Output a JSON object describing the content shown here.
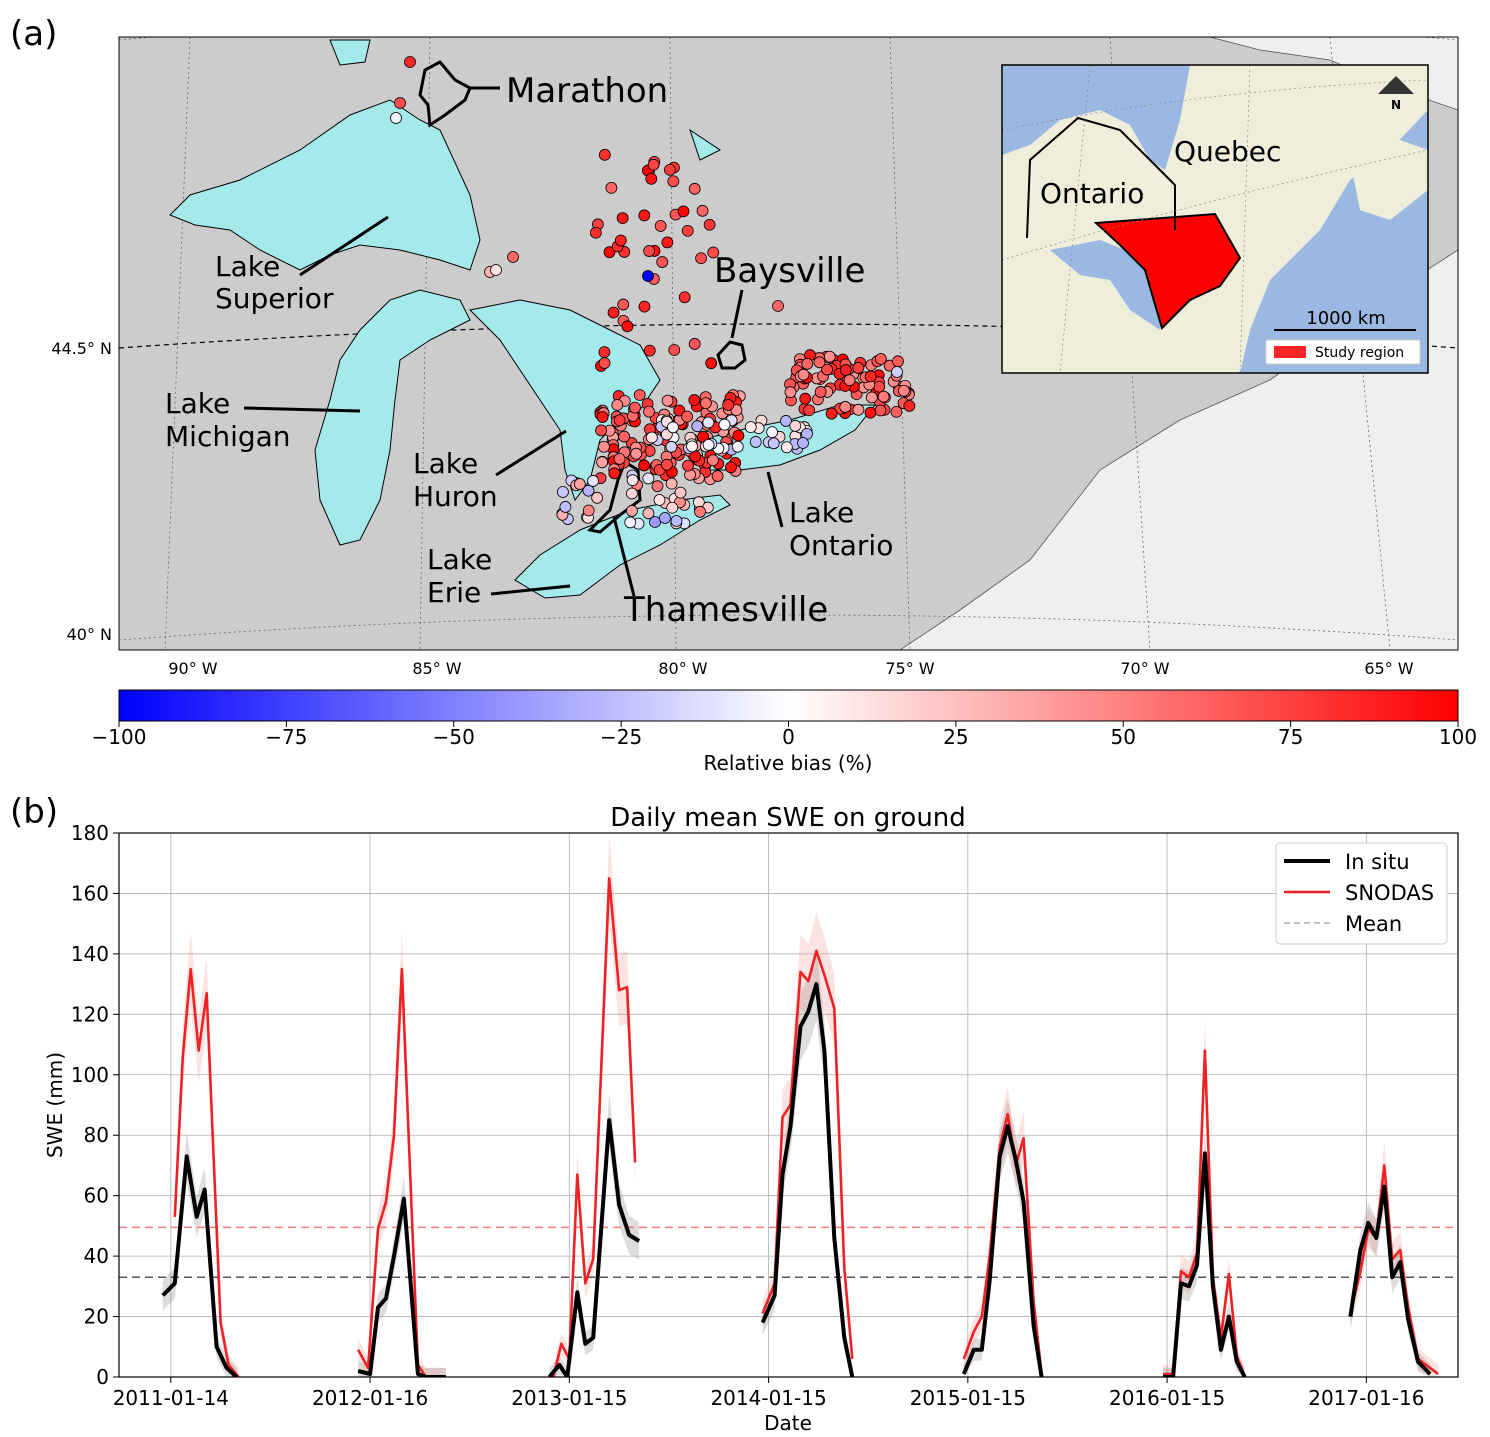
{
  "panel_a": {
    "letter": "(a)",
    "lat_labels": [
      "44.5° N",
      "40° N"
    ],
    "lon_labels": [
      "90° W",
      "85° W",
      "80° W",
      "75° W",
      "70° W",
      "65° W"
    ],
    "lake_labels": {
      "superior": [
        "Lake",
        "Superior"
      ],
      "michigan": [
        "Lake",
        "Michigan"
      ],
      "huron": [
        "Lake",
        "Huron"
      ],
      "erie": [
        "Lake",
        "Erie"
      ],
      "ontario": [
        "Lake",
        "Ontario"
      ]
    },
    "site_labels": {
      "marathon": "Marathon",
      "baysville": "Baysville",
      "thamesville": "Thamesville"
    },
    "inset": {
      "ontario": "Ontario",
      "quebec": "Quebec",
      "north": "N",
      "scale": "1000 km",
      "legend": "Study region",
      "region_color": "#ff0000"
    },
    "colorbar": {
      "label": "Relative bias (%)",
      "ticks": [
        "−100",
        "−75",
        "−50",
        "−25",
        "0",
        "25",
        "50",
        "75",
        "100"
      ],
      "min": -100,
      "max": 100
    },
    "colors": {
      "land": "#cccccc",
      "lakes": "#a5eaea",
      "ocean_inset": "#9bb8e3",
      "land_inset": "#efeedb"
    }
  },
  "panel_b": {
    "letter": "(b)",
    "chart_data": {
      "type": "line",
      "title": "Daily mean SWE on ground",
      "xlabel": "Date",
      "ylabel": "SWE (mm)",
      "ylim": [
        0,
        180
      ],
      "yticks": [
        0,
        20,
        40,
        60,
        80,
        100,
        120,
        140,
        160,
        180
      ],
      "xtick_labels": [
        "2011-01-14",
        "2012-01-16",
        "2013-01-15",
        "2014-01-15",
        "2015-01-15",
        "2016-01-15",
        "2017-01-16"
      ],
      "grid": true,
      "legend_position": "top-right",
      "legend": [
        "In situ",
        "SNODAS",
        "Mean"
      ],
      "mean_in_situ": 33,
      "mean_snodas": 49.5,
      "series": [
        {
          "name": "In situ",
          "color": "#000000",
          "seasons": [
            [
              [
                -0.04,
                27
              ],
              [
                0.02,
                31
              ],
              [
                0.08,
                73
              ],
              [
                0.13,
                53
              ],
              [
                0.17,
                62
              ],
              [
                0.23,
                10
              ],
              [
                0.28,
                3
              ],
              [
                0.33,
                0
              ]
            ],
            [
              [
                0.94,
                2
              ],
              [
                1.0,
                1
              ],
              [
                1.04,
                23
              ],
              [
                1.08,
                26
              ],
              [
                1.12,
                40
              ],
              [
                1.17,
                59
              ],
              [
                1.24,
                1
              ],
              [
                1.28,
                0
              ],
              [
                1.38,
                0
              ]
            ],
            [
              [
                1.9,
                0
              ],
              [
                1.95,
                4
              ],
              [
                1.99,
                0
              ],
              [
                2.04,
                28
              ],
              [
                2.08,
                11
              ],
              [
                2.12,
                13
              ],
              [
                2.2,
                85
              ],
              [
                2.25,
                57
              ],
              [
                2.3,
                47
              ],
              [
                2.35,
                45
              ]
            ],
            [
              [
                2.97,
                18
              ],
              [
                3.03,
                27
              ],
              [
                3.07,
                67
              ],
              [
                3.11,
                83
              ],
              [
                3.16,
                116
              ],
              [
                3.2,
                121
              ],
              [
                3.24,
                130
              ],
              [
                3.28,
                108
              ],
              [
                3.33,
                46
              ],
              [
                3.38,
                13
              ],
              [
                3.42,
                0
              ]
            ],
            [
              [
                3.98,
                1
              ],
              [
                4.03,
                9
              ],
              [
                4.07,
                9
              ],
              [
                4.11,
                32
              ],
              [
                4.16,
                73
              ],
              [
                4.2,
                83
              ],
              [
                4.24,
                72
              ],
              [
                4.28,
                58
              ],
              [
                4.33,
                17
              ],
              [
                4.37,
                0
              ]
            ],
            [
              [
                4.98,
                0
              ],
              [
                5.03,
                0
              ],
              [
                5.07,
                31
              ],
              [
                5.11,
                30
              ],
              [
                5.15,
                37
              ],
              [
                5.19,
                74
              ],
              [
                5.23,
                30
              ],
              [
                5.27,
                9
              ],
              [
                5.31,
                20
              ],
              [
                5.35,
                5
              ],
              [
                5.39,
                0
              ]
            ],
            [
              [
                5.92,
                20
              ],
              [
                5.97,
                42
              ],
              [
                6.01,
                51
              ],
              [
                6.05,
                46
              ],
              [
                6.09,
                63
              ],
              [
                6.13,
                33
              ],
              [
                6.17,
                38
              ],
              [
                6.21,
                19
              ],
              [
                6.26,
                5
              ],
              [
                6.32,
                1
              ]
            ]
          ]
        },
        {
          "name": "SNODAS",
          "color": "#ee2222",
          "seasons": [
            [
              [
                0.02,
                53
              ],
              [
                0.06,
                106
              ],
              [
                0.1,
                135
              ],
              [
                0.14,
                108
              ],
              [
                0.18,
                127
              ],
              [
                0.25,
                18
              ],
              [
                0.29,
                4
              ],
              [
                0.34,
                0
              ]
            ],
            [
              [
                0.94,
                9
              ],
              [
                0.99,
                3
              ],
              [
                1.04,
                49
              ],
              [
                1.08,
                58
              ],
              [
                1.12,
                80
              ],
              [
                1.16,
                135
              ],
              [
                1.24,
                4
              ],
              [
                1.28,
                0
              ],
              [
                1.38,
                0
              ]
            ],
            [
              [
                1.92,
                0
              ],
              [
                1.96,
                11
              ],
              [
                2.0,
                6
              ],
              [
                2.04,
                67
              ],
              [
                2.08,
                31
              ],
              [
                2.12,
                39
              ],
              [
                2.2,
                165
              ],
              [
                2.25,
                128
              ],
              [
                2.29,
                129
              ],
              [
                2.33,
                71
              ]
            ],
            [
              [
                2.97,
                21
              ],
              [
                3.03,
                31
              ],
              [
                3.07,
                86
              ],
              [
                3.11,
                90
              ],
              [
                3.16,
                134
              ],
              [
                3.2,
                131
              ],
              [
                3.24,
                141
              ],
              [
                3.28,
                133
              ],
              [
                3.33,
                122
              ],
              [
                3.38,
                36
              ],
              [
                3.42,
                6
              ]
            ],
            [
              [
                3.98,
                6
              ],
              [
                4.03,
                15
              ],
              [
                4.07,
                20
              ],
              [
                4.11,
                40
              ],
              [
                4.16,
                76
              ],
              [
                4.2,
                87
              ],
              [
                4.24,
                70
              ],
              [
                4.28,
                79
              ],
              [
                4.33,
                25
              ],
              [
                4.37,
                1
              ]
            ],
            [
              [
                4.98,
                1
              ],
              [
                5.03,
                1
              ],
              [
                5.07,
                35
              ],
              [
                5.11,
                33
              ],
              [
                5.15,
                41
              ],
              [
                5.19,
                108
              ],
              [
                5.23,
                33
              ],
              [
                5.27,
                13
              ],
              [
                5.31,
                34
              ],
              [
                5.35,
                7
              ],
              [
                5.39,
                0
              ]
            ],
            [
              [
                5.92,
                21
              ],
              [
                5.97,
                35
              ],
              [
                6.01,
                49
              ],
              [
                6.05,
                46
              ],
              [
                6.09,
                70
              ],
              [
                6.13,
                39
              ],
              [
                6.17,
                42
              ],
              [
                6.21,
                23
              ],
              [
                6.26,
                6
              ],
              [
                6.32,
                3
              ],
              [
                6.36,
                1
              ]
            ]
          ]
        }
      ]
    }
  }
}
